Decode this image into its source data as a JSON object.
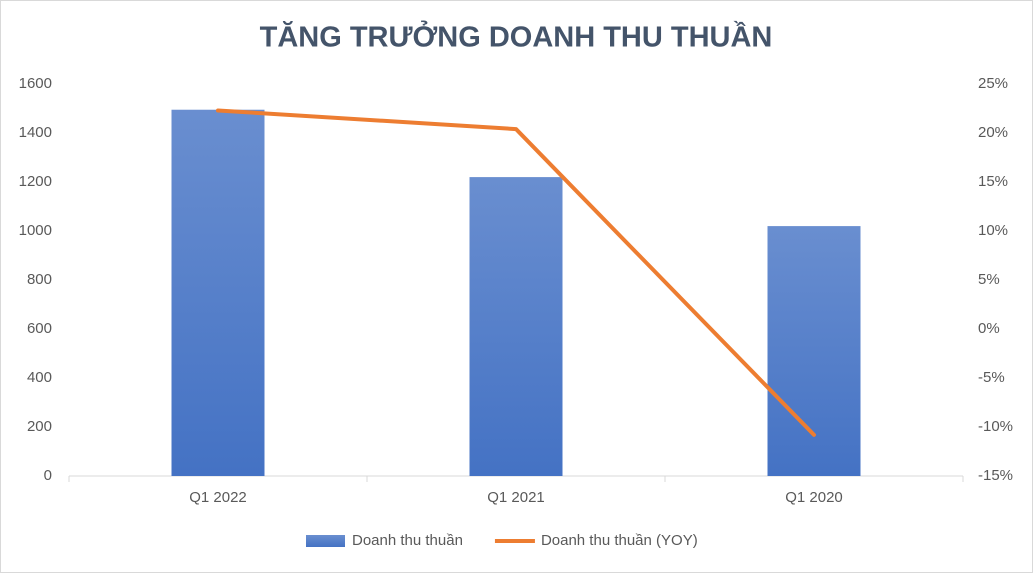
{
  "chart_data": {
    "type": "bar",
    "title": "TĂNG TRƯỞNG DOANH THU THUẦN",
    "categories": [
      "Q1 2022",
      "Q1 2021",
      "Q1 2020"
    ],
    "series": [
      {
        "name": "Doanh thu thuần",
        "type": "bar",
        "color": "#4472c4",
        "values": [
          1495,
          1220,
          1020
        ]
      },
      {
        "name": "Doanh thu thuần (YOY)",
        "type": "line",
        "axis": "y2",
        "color": "#ed7d31",
        "values": [
          22.3,
          20.4,
          -10.8
        ]
      }
    ],
    "ylim": [
      0,
      1600
    ],
    "yticks": [
      0,
      200,
      400,
      600,
      800,
      1000,
      1200,
      1400,
      1600
    ],
    "y2lim": [
      -15,
      25
    ],
    "y2ticks": [
      {
        "value": -15,
        "label": "-15%"
      },
      {
        "value": -10,
        "label": "-10%"
      },
      {
        "value": -5,
        "label": "-5%"
      },
      {
        "value": 0,
        "label": "0%"
      },
      {
        "value": 5,
        "label": "5%"
      },
      {
        "value": 10,
        "label": "10%"
      },
      {
        "value": 15,
        "label": "15%"
      },
      {
        "value": 20,
        "label": "20%"
      },
      {
        "value": 25,
        "label": "25%"
      }
    ],
    "legend": "bottom"
  }
}
